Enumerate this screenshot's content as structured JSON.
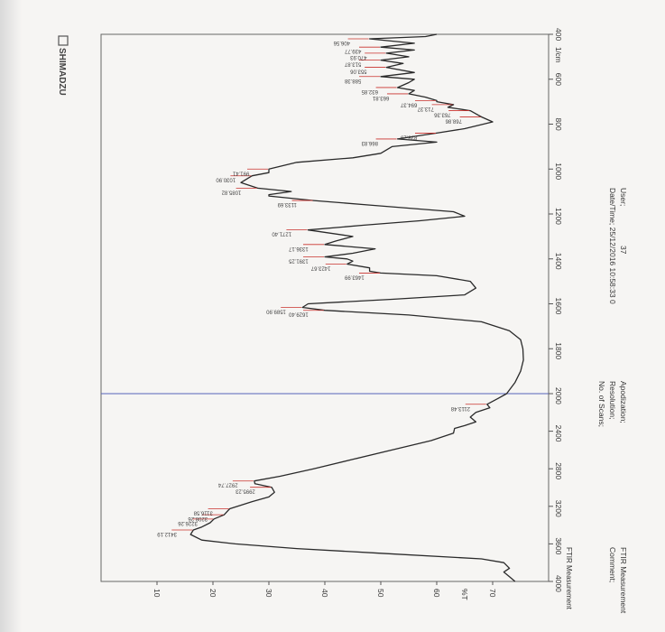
{
  "brand": {
    "name": "SHIMADZU"
  },
  "header": {
    "datetime_label": "Date/Time; 25/12/2016 10:58:33 0",
    "user_label": "User;",
    "user_value": "37"
  },
  "footer": {
    "scans_label": "No. of Scans;",
    "resolution_label": "Resolution;",
    "apodization_label": "Apodization;",
    "measurement_label": "FTIR Measurement",
    "comment_label": "Comment;",
    "comment_value": "FTIR Measurement"
  },
  "chart_data": {
    "type": "line",
    "title": "",
    "xlabel": "",
    "ylabel": "",
    "xunit": "1/cm",
    "xlim": [
      4000,
      400
    ],
    "ylim": [
      0,
      80
    ],
    "x_ticks": [
      "4000",
      "3600",
      "3200",
      "2800",
      "2400",
      "2000",
      "1800",
      "1600",
      "1400",
      "1200",
      "1000",
      "800",
      "600",
      "400"
    ],
    "y_ticks": [
      "10",
      "20",
      "30",
      "40",
      "50",
      "60",
      "%T",
      "70"
    ],
    "marker_line_x": 2000,
    "grid": false,
    "series": [
      {
        "points": [
          [
            4000,
            74
          ],
          [
            3950,
            73
          ],
          [
            3900,
            72
          ],
          [
            3860,
            73
          ],
          [
            3800,
            72
          ],
          [
            3760,
            68
          ],
          [
            3700,
            50
          ],
          [
            3650,
            35
          ],
          [
            3600,
            24
          ],
          [
            3560,
            18
          ],
          [
            3500,
            16
          ],
          [
            3452,
            16.5
          ],
          [
            3420,
            18
          ],
          [
            3375,
            19.5
          ],
          [
            3335,
            20.2
          ],
          [
            3290,
            22
          ],
          [
            3226,
            23
          ],
          [
            3150,
            27
          ],
          [
            3100,
            30
          ],
          [
            3050,
            31
          ],
          [
            2997,
            30.5
          ],
          [
            2960,
            27.5
          ],
          [
            2930,
            27.4
          ],
          [
            2880,
            32
          ],
          [
            2800,
            38
          ],
          [
            2700,
            45
          ],
          [
            2600,
            52
          ],
          [
            2500,
            59
          ],
          [
            2420,
            63
          ],
          [
            2370,
            63.2
          ],
          [
            2340,
            65
          ],
          [
            2300,
            67
          ],
          [
            2250,
            66
          ],
          [
            2200,
            67
          ],
          [
            2150,
            69.5
          ],
          [
            2113,
            69
          ],
          [
            2050,
            71
          ],
          [
            2000,
            72.5
          ],
          [
            1950,
            74
          ],
          [
            1900,
            75
          ],
          [
            1850,
            75.5
          ],
          [
            1800,
            75.4
          ],
          [
            1760,
            75
          ],
          [
            1720,
            73
          ],
          [
            1680,
            68
          ],
          [
            1650,
            55
          ],
          [
            1629,
            40
          ],
          [
            1616,
            36
          ],
          [
            1600,
            37
          ],
          [
            1580,
            52
          ],
          [
            1560,
            65
          ],
          [
            1530,
            67
          ],
          [
            1500,
            66
          ],
          [
            1475,
            60
          ],
          [
            1463,
            50
          ],
          [
            1455,
            48
          ],
          [
            1440,
            48
          ],
          [
            1423,
            44
          ],
          [
            1410,
            45
          ],
          [
            1400,
            44
          ],
          [
            1391,
            40
          ],
          [
            1375,
            45
          ],
          [
            1355,
            49
          ],
          [
            1336,
            40
          ],
          [
            1320,
            42
          ],
          [
            1300,
            45
          ],
          [
            1271,
            37
          ],
          [
            1250,
            47
          ],
          [
            1230,
            57
          ],
          [
            1210,
            65
          ],
          [
            1190,
            63
          ],
          [
            1160,
            48
          ],
          [
            1140,
            38
          ],
          [
            1120,
            30
          ],
          [
            1114,
            30
          ],
          [
            1100,
            34
          ],
          [
            1085,
            28
          ],
          [
            1060,
            25
          ],
          [
            1030,
            27
          ],
          [
            1016,
            30
          ],
          [
            1000,
            30
          ],
          [
            970,
            35
          ],
          [
            950,
            45
          ],
          [
            930,
            50
          ],
          [
            900,
            52
          ],
          [
            880,
            60
          ],
          [
            866,
            53
          ],
          [
            840,
            60
          ],
          [
            820,
            65
          ],
          [
            808,
            67
          ],
          [
            790,
            70
          ],
          [
            768,
            68
          ],
          [
            740,
            66
          ],
          [
            725,
            62
          ],
          [
            713,
            63
          ],
          [
            700,
            60
          ],
          [
            695,
            60
          ],
          [
            680,
            58
          ],
          [
            665,
            55
          ],
          [
            650,
            56
          ],
          [
            637,
            53
          ],
          [
            615,
            55
          ],
          [
            600,
            56
          ],
          [
            588,
            50
          ],
          [
            570,
            56
          ],
          [
            547,
            51
          ],
          [
            530,
            54
          ],
          [
            515,
            50
          ],
          [
            500,
            55
          ],
          [
            484,
            51
          ],
          [
            470,
            56
          ],
          [
            457,
            50
          ],
          [
            440,
            56
          ],
          [
            430,
            52
          ],
          [
            420,
            48
          ],
          [
            410,
            58
          ],
          [
            400,
            60
          ]
        ]
      }
    ],
    "peak_labels": [
      {
        "label": "3412.19",
        "x": 3452,
        "y": 16.5
      },
      {
        "label": "3226.26",
        "x": 3335,
        "y": 20.2
      },
      {
        "label": "3208.26",
        "x": 3290,
        "y": 22
      },
      {
        "label": "3116.58",
        "x": 3226,
        "y": 23
      },
      {
        "label": "2995.23",
        "x": 2997,
        "y": 30.5
      },
      {
        "label": "2927.74",
        "x": 2930,
        "y": 27.4
      },
      {
        "label": "2113.48",
        "x": 2113,
        "y": 69
      },
      {
        "label": "1629.40",
        "x": 1629,
        "y": 40
      },
      {
        "label": "1589.90",
        "x": 1616,
        "y": 36
      },
      {
        "label": "1463.99",
        "x": 1463,
        "y": 50
      },
      {
        "label": "1423.67",
        "x": 1423,
        "y": 44
      },
      {
        "label": "1391.25",
        "x": 1391,
        "y": 40
      },
      {
        "label": "1336.17",
        "x": 1336,
        "y": 40
      },
      {
        "label": "1271.40",
        "x": 1271,
        "y": 37
      },
      {
        "label": "1133.69",
        "x": 1140,
        "y": 38
      },
      {
        "label": "1085.82",
        "x": 1085,
        "y": 28
      },
      {
        "label": "1030.90",
        "x": 1030,
        "y": 27
      },
      {
        "label": "991.41",
        "x": 1000,
        "y": 30
      },
      {
        "label": "866.83",
        "x": 866,
        "y": 53
      },
      {
        "label": "838.29",
        "x": 840,
        "y": 60
      },
      {
        "label": "768.86",
        "x": 768,
        "y": 68
      },
      {
        "label": "763.36",
        "x": 740,
        "y": 66
      },
      {
        "label": "713.37",
        "x": 713,
        "y": 63
      },
      {
        "label": "694.37",
        "x": 695,
        "y": 60
      },
      {
        "label": "663.81",
        "x": 665,
        "y": 55
      },
      {
        "label": "632.85",
        "x": 637,
        "y": 53
      },
      {
        "label": "588.38",
        "x": 588,
        "y": 50
      },
      {
        "label": "553.06",
        "x": 547,
        "y": 51
      },
      {
        "label": "513.87",
        "x": 515,
        "y": 50
      },
      {
        "label": "470.93",
        "x": 484,
        "y": 51
      },
      {
        "label": "439.77",
        "x": 457,
        "y": 50
      },
      {
        "label": "406.56",
        "x": 420,
        "y": 48
      }
    ]
  }
}
